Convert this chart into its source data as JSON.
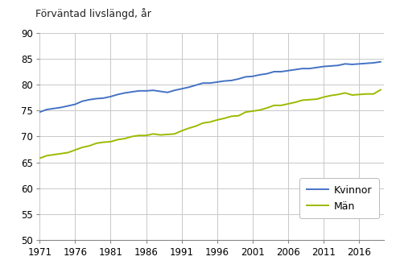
{
  "title": "Förväntad livslängd, år",
  "years": [
    1971,
    1972,
    1973,
    1974,
    1975,
    1976,
    1977,
    1978,
    1979,
    1980,
    1981,
    1982,
    1983,
    1984,
    1985,
    1986,
    1987,
    1988,
    1989,
    1990,
    1991,
    1992,
    1993,
    1994,
    1995,
    1996,
    1997,
    1998,
    1999,
    2000,
    2001,
    2002,
    2003,
    2004,
    2005,
    2006,
    2007,
    2008,
    2009,
    2010,
    2011,
    2012,
    2013,
    2014,
    2015,
    2016,
    2017,
    2018,
    2019
  ],
  "kvinnor": [
    74.7,
    75.2,
    75.4,
    75.6,
    75.9,
    76.2,
    76.8,
    77.1,
    77.3,
    77.4,
    77.7,
    78.1,
    78.4,
    78.6,
    78.8,
    78.8,
    78.9,
    78.7,
    78.5,
    78.9,
    79.2,
    79.5,
    79.9,
    80.3,
    80.3,
    80.5,
    80.7,
    80.8,
    81.1,
    81.5,
    81.6,
    81.9,
    82.1,
    82.5,
    82.5,
    82.7,
    82.9,
    83.1,
    83.1,
    83.3,
    83.5,
    83.6,
    83.7,
    84.0,
    83.9,
    84.0,
    84.1,
    84.2,
    84.4
  ],
  "man": [
    65.8,
    66.3,
    66.5,
    66.7,
    66.9,
    67.4,
    67.9,
    68.2,
    68.7,
    68.9,
    69.0,
    69.4,
    69.6,
    70.0,
    70.2,
    70.2,
    70.5,
    70.3,
    70.4,
    70.5,
    71.1,
    71.6,
    72.0,
    72.6,
    72.8,
    73.2,
    73.5,
    73.9,
    74.0,
    74.7,
    74.9,
    75.1,
    75.5,
    76.0,
    76.0,
    76.3,
    76.6,
    77.0,
    77.1,
    77.2,
    77.6,
    77.9,
    78.1,
    78.4,
    78.0,
    78.1,
    78.2,
    78.2,
    79.0
  ],
  "color_kvinnor": "#4472C4",
  "color_man": "#9BBB00",
  "xlim_min": 1971,
  "xlim_max": 2019.5,
  "ylim_min": 50,
  "ylim_max": 90,
  "yticks": [
    50,
    55,
    60,
    65,
    70,
    75,
    80,
    85,
    90
  ],
  "xticks": [
    1971,
    1976,
    1981,
    1986,
    1991,
    1996,
    2001,
    2006,
    2011,
    2016
  ],
  "legend_labels": [
    "Kvinnor",
    "Män"
  ],
  "background_color": "#ffffff",
  "grid_color": "#c8c8c8",
  "title_fontsize": 9.0,
  "tick_fontsize": 8.5,
  "legend_fontsize": 9.0,
  "line_width": 1.4
}
